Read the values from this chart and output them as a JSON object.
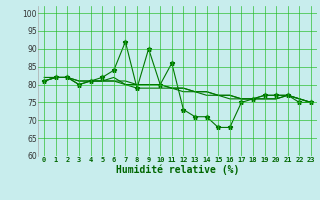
{
  "xlabel": "Humidité relative (%)",
  "bg_color": "#c8eded",
  "grid_color": "#22bb22",
  "line_color": "#007700",
  "xlim": [
    -0.5,
    23.5
  ],
  "ylim": [
    60,
    102
  ],
  "yticks": [
    60,
    65,
    70,
    75,
    80,
    85,
    90,
    95,
    100
  ],
  "xticks": [
    0,
    1,
    2,
    3,
    4,
    5,
    6,
    7,
    8,
    9,
    10,
    11,
    12,
    13,
    14,
    15,
    16,
    17,
    18,
    19,
    20,
    21,
    22,
    23
  ],
  "series_spiky": [
    81,
    82,
    82,
    80,
    81,
    82,
    84,
    92,
    79,
    90,
    80,
    86,
    73,
    71,
    71,
    68,
    68,
    75,
    76,
    77,
    77,
    77,
    75,
    75
  ],
  "series2": [
    81,
    82,
    82,
    80,
    81,
    81,
    82,
    80,
    79,
    79,
    79,
    79,
    78,
    78,
    77,
    77,
    76,
    76,
    76,
    77,
    77,
    77,
    76,
    75
  ],
  "series3": [
    81,
    82,
    82,
    81,
    81,
    81,
    81,
    81,
    80,
    80,
    80,
    79,
    79,
    78,
    78,
    77,
    77,
    76,
    76,
    76,
    76,
    77,
    76,
    75
  ],
  "series4": [
    82,
    82,
    82,
    81,
    81,
    81,
    81,
    80,
    80,
    80,
    80,
    79,
    79,
    78,
    78,
    77,
    77,
    76,
    76,
    76,
    76,
    77,
    76,
    75
  ]
}
